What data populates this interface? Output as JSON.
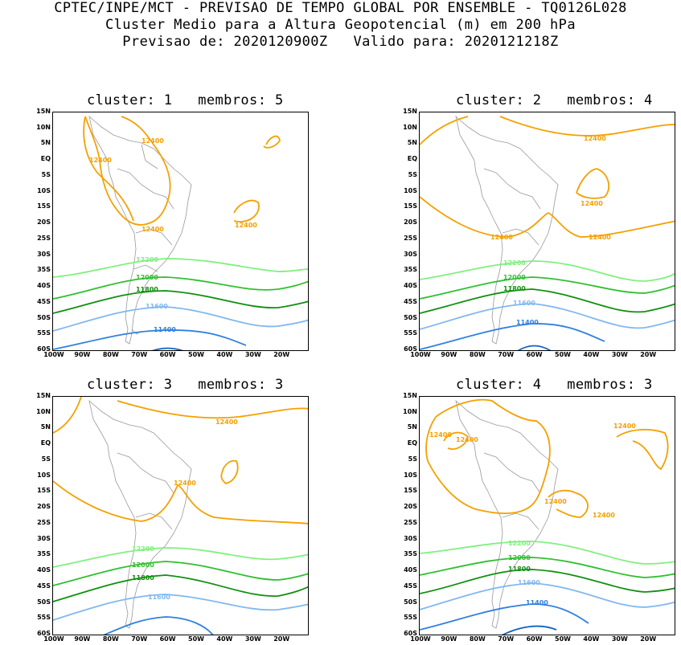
{
  "header": {
    "line1": "CPTEC/INPE/MCT - PREVISAO DE TEMPO GLOBAL POR ENSEMBLE - TQ0126L028",
    "line2": "Cluster Medio para a Altura Geopotencial (m) em 200 hPa",
    "line3": "Previsao de: 2020120900Z   Valido para: 2020121218Z"
  },
  "lat_ticks": [
    "15N",
    "10N",
    "5N",
    "EQ",
    "5S",
    "10S",
    "15S",
    "20S",
    "25S",
    "30S",
    "35S",
    "40S",
    "45S",
    "50S",
    "55S",
    "60S"
  ],
  "lon_ticks": [
    "100W",
    "90W",
    "80W",
    "70W",
    "60W",
    "50W",
    "40W",
    "30W",
    "20W"
  ],
  "panels": [
    {
      "title": "cluster: 1   membros: 5",
      "labels": {
        "z12400": "12400",
        "z12200": "12200",
        "z12000": "12000",
        "z11800": "11800",
        "z11600": "11600",
        "z11400": "11400"
      }
    },
    {
      "title": "cluster: 2   membros: 4",
      "labels": {
        "z12400": "12400",
        "z12200": "12200",
        "z12000": "12000",
        "z11800": "11800",
        "z11600": "11600",
        "z11400": "11400"
      }
    },
    {
      "title": "cluster: 3   membros: 3",
      "labels": {
        "z12400": "12400",
        "z12200": "12200",
        "z12000": "12000",
        "z11800": "11800",
        "z11600": "11600"
      }
    },
    {
      "title": "cluster: 4   membros: 3",
      "labels": {
        "z12400": "12400",
        "z12200": "12200",
        "z12000": "12000",
        "z11800": "11800",
        "z11600": "11600",
        "z11400": "11400"
      }
    }
  ],
  "colors": {
    "z12400": "#f5a000",
    "z12200": "#80f080",
    "z12000": "#30c030",
    "z11800": "#109010",
    "z11600": "#80b8f0",
    "z11400": "#3080e0",
    "z11200": "#1060c0",
    "coast": "#999999"
  }
}
